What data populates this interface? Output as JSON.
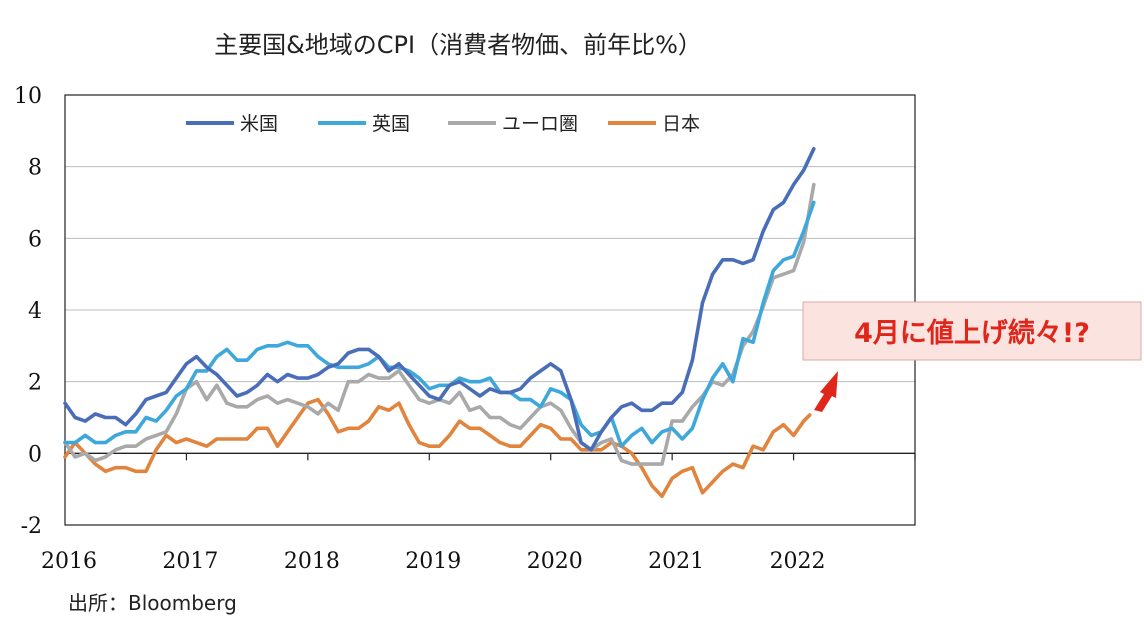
{
  "chart_data": {
    "type": "line",
    "title": "主要国&地域のCPI（消費者物価、前年比%）",
    "source": "出所：Bloomberg",
    "annotation": "4月に値上げ続々!?",
    "ylim": [
      -2,
      10
    ],
    "yticks": [
      -2,
      0,
      2,
      4,
      6,
      8,
      10
    ],
    "xlim": [
      2016,
      2023
    ],
    "xticks": [
      2016,
      2017,
      2018,
      2019,
      2020,
      2021,
      2022
    ],
    "grid": true,
    "legend": "top-left",
    "x_start": "2016-01",
    "step": "monthly",
    "series": [
      {
        "name": "米国",
        "color": "#4a6db8",
        "values": [
          1.4,
          1.0,
          0.9,
          1.1,
          1.0,
          1.0,
          0.8,
          1.1,
          1.5,
          1.6,
          1.7,
          2.1,
          2.5,
          2.7,
          2.4,
          2.2,
          1.9,
          1.6,
          1.7,
          1.9,
          2.2,
          2.0,
          2.2,
          2.1,
          2.1,
          2.2,
          2.4,
          2.5,
          2.8,
          2.9,
          2.9,
          2.7,
          2.3,
          2.5,
          2.2,
          1.9,
          1.6,
          1.5,
          1.9,
          2.0,
          1.8,
          1.6,
          1.8,
          1.7,
          1.7,
          1.8,
          2.1,
          2.3,
          2.5,
          2.3,
          1.5,
          0.3,
          0.1,
          0.6,
          1.0,
          1.3,
          1.4,
          1.2,
          1.2,
          1.4,
          1.4,
          1.7,
          2.6,
          4.2,
          5.0,
          5.4,
          5.4,
          5.3,
          5.4,
          6.2,
          6.8,
          7.0,
          7.5,
          7.9,
          8.5
        ]
      },
      {
        "name": "英国",
        "color": "#3ea8dc",
        "values": [
          0.3,
          0.3,
          0.5,
          0.3,
          0.3,
          0.5,
          0.6,
          0.6,
          1.0,
          0.9,
          1.2,
          1.6,
          1.8,
          2.3,
          2.3,
          2.7,
          2.9,
          2.6,
          2.6,
          2.9,
          3.0,
          3.0,
          3.1,
          3.0,
          3.0,
          2.7,
          2.5,
          2.4,
          2.4,
          2.4,
          2.5,
          2.7,
          2.4,
          2.4,
          2.3,
          2.1,
          1.8,
          1.9,
          1.9,
          2.1,
          2.0,
          2.0,
          2.1,
          1.7,
          1.7,
          1.5,
          1.5,
          1.3,
          1.8,
          1.7,
          1.5,
          0.8,
          0.5,
          0.6,
          1.0,
          0.2,
          0.5,
          0.7,
          0.3,
          0.6,
          0.7,
          0.4,
          0.7,
          1.5,
          2.1,
          2.5,
          2.0,
          3.2,
          3.1,
          4.2,
          5.1,
          5.4,
          5.5,
          6.2,
          7.0
        ]
      },
      {
        "name": "ユーロ圏",
        "color": "#a9a9a9",
        "values": [
          0.3,
          -0.1,
          0.0,
          -0.2,
          -0.1,
          0.1,
          0.2,
          0.2,
          0.4,
          0.5,
          0.6,
          1.1,
          1.8,
          2.0,
          1.5,
          1.9,
          1.4,
          1.3,
          1.3,
          1.5,
          1.6,
          1.4,
          1.5,
          1.4,
          1.3,
          1.1,
          1.4,
          1.2,
          2.0,
          2.0,
          2.2,
          2.1,
          2.1,
          2.3,
          1.9,
          1.5,
          1.4,
          1.5,
          1.4,
          1.7,
          1.2,
          1.3,
          1.0,
          1.0,
          0.8,
          0.7,
          1.0,
          1.3,
          1.4,
          1.2,
          0.7,
          0.3,
          0.1,
          0.3,
          0.4,
          -0.2,
          -0.3,
          -0.3,
          -0.3,
          -0.3,
          0.9,
          0.9,
          1.3,
          1.6,
          2.0,
          1.9,
          2.2,
          3.0,
          3.4,
          4.1,
          4.9,
          5.0,
          5.1,
          5.9,
          7.5
        ]
      },
      {
        "name": "日本",
        "color": "#e0843e",
        "values": [
          -0.1,
          0.3,
          0.0,
          -0.3,
          -0.5,
          -0.4,
          -0.4,
          -0.5,
          -0.5,
          0.1,
          0.5,
          0.3,
          0.4,
          0.3,
          0.2,
          0.4,
          0.4,
          0.4,
          0.4,
          0.7,
          0.7,
          0.2,
          0.6,
          1.0,
          1.4,
          1.5,
          1.1,
          0.6,
          0.7,
          0.7,
          0.9,
          1.3,
          1.2,
          1.4,
          0.8,
          0.3,
          0.2,
          0.2,
          0.5,
          0.9,
          0.7,
          0.7,
          0.5,
          0.3,
          0.2,
          0.2,
          0.5,
          0.8,
          0.7,
          0.4,
          0.4,
          0.1,
          0.1,
          0.1,
          0.3,
          0.2,
          0.0,
          -0.4,
          -0.9,
          -1.2,
          -0.7,
          -0.5,
          -0.4,
          -1.1,
          -0.8,
          -0.5,
          -0.3,
          -0.4,
          0.2,
          0.1,
          0.6,
          0.8,
          0.5,
          0.9
        ]
      }
    ]
  }
}
